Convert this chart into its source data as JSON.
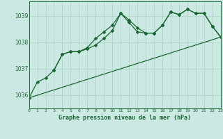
{
  "bg_color": "#cce8e2",
  "line_color": "#1a6632",
  "grid_color": "#aad4c8",
  "title": "Graphe pression niveau de la mer (hPa)",
  "xlim": [
    0,
    23
  ],
  "ylim": [
    1035.5,
    1039.55
  ],
  "yticks": [
    1036,
    1037,
    1038,
    1039
  ],
  "xticks": [
    0,
    1,
    2,
    3,
    4,
    5,
    6,
    7,
    8,
    9,
    10,
    11,
    12,
    13,
    14,
    15,
    16,
    17,
    18,
    19,
    20,
    21,
    22,
    23
  ],
  "series1_x": [
    0,
    1,
    2,
    3,
    4,
    5,
    6,
    7,
    8,
    9,
    10,
    11,
    12,
    13,
    14,
    15,
    16,
    17,
    18,
    19,
    20,
    21,
    22,
    23
  ],
  "series1_y": [
    1035.9,
    1036.5,
    1036.65,
    1036.95,
    1037.55,
    1037.65,
    1037.65,
    1037.75,
    1037.9,
    1038.15,
    1038.45,
    1039.1,
    1038.85,
    1038.55,
    1038.35,
    1038.35,
    1038.65,
    1039.15,
    1039.05,
    1039.25,
    1039.1,
    1039.1,
    1038.6,
    1038.2
  ],
  "series2_x": [
    3,
    4,
    5,
    6,
    7,
    8,
    9,
    10,
    11,
    12,
    13,
    14,
    15,
    16,
    17,
    18,
    19,
    20,
    21,
    22,
    23
  ],
  "series2_y": [
    1036.95,
    1037.55,
    1037.65,
    1037.65,
    1037.8,
    1038.15,
    1038.4,
    1038.65,
    1039.1,
    1038.75,
    1038.4,
    1038.35,
    1038.35,
    1038.65,
    1039.15,
    1039.05,
    1039.25,
    1039.1,
    1039.1,
    1038.6,
    1038.2
  ],
  "series3_x": [
    0,
    23
  ],
  "series3_y": [
    1035.9,
    1038.2
  ]
}
